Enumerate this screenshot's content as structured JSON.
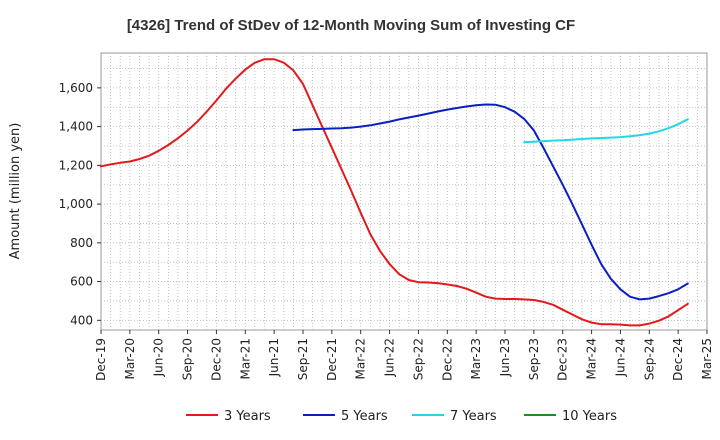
{
  "chart_data": {
    "type": "line",
    "title": "[4326]  Trend of StDev of 12-Month Moving Sum of Investing CF",
    "ylabel": "Amount (million yen)",
    "xlabel": "",
    "ylim": [
      350,
      1780
    ],
    "yticks": [
      400,
      600,
      800,
      1000,
      1200,
      1400,
      1600
    ],
    "ytick_labels": [
      "400",
      "600",
      "800",
      "1,000",
      "1,200",
      "1,400",
      "1,600"
    ],
    "x_range": [
      "2019-12",
      "2025-03"
    ],
    "xticks": [
      "2019-12",
      "2020-03",
      "2020-06",
      "2020-09",
      "2020-12",
      "2021-03",
      "2021-06",
      "2021-09",
      "2021-12",
      "2022-03",
      "2022-06",
      "2022-09",
      "2022-12",
      "2023-03",
      "2023-06",
      "2023-09",
      "2023-12",
      "2024-03",
      "2024-06",
      "2024-09",
      "2024-12",
      "2025-03"
    ],
    "xtick_labels": [
      "Dec-19",
      "Mar-20",
      "Jun-20",
      "Sep-20",
      "Dec-20",
      "Mar-21",
      "Jun-21",
      "Sep-21",
      "Dec-21",
      "Mar-22",
      "Jun-22",
      "Sep-22",
      "Dec-22",
      "Mar-23",
      "Jun-23",
      "Sep-23",
      "Dec-23",
      "Mar-24",
      "Jun-24",
      "Sep-24",
      "Dec-24",
      "Mar-25"
    ],
    "grid": true,
    "legend_position": "bottom",
    "series": [
      {
        "name": "3 Years",
        "color": "#e31a1c",
        "points": [
          [
            "2019-12",
            1195
          ],
          [
            "2020-01",
            1205
          ],
          [
            "2020-02",
            1213
          ],
          [
            "2020-03",
            1220
          ],
          [
            "2020-04",
            1233
          ],
          [
            "2020-05",
            1250
          ],
          [
            "2020-06",
            1275
          ],
          [
            "2020-07",
            1305
          ],
          [
            "2020-08",
            1340
          ],
          [
            "2020-09",
            1380
          ],
          [
            "2020-10",
            1425
          ],
          [
            "2020-11",
            1478
          ],
          [
            "2020-12",
            1535
          ],
          [
            "2021-01",
            1595
          ],
          [
            "2021-02",
            1648
          ],
          [
            "2021-03",
            1695
          ],
          [
            "2021-04",
            1730
          ],
          [
            "2021-05",
            1748
          ],
          [
            "2021-06",
            1748
          ],
          [
            "2021-07",
            1730
          ],
          [
            "2021-08",
            1690
          ],
          [
            "2021-09",
            1620
          ],
          [
            "2021-10",
            1510
          ],
          [
            "2021-11",
            1400
          ],
          [
            "2021-12",
            1290
          ],
          [
            "2022-01",
            1180
          ],
          [
            "2022-02",
            1070
          ],
          [
            "2022-03",
            955
          ],
          [
            "2022-04",
            845
          ],
          [
            "2022-05",
            758
          ],
          [
            "2022-06",
            690
          ],
          [
            "2022-07",
            638
          ],
          [
            "2022-08",
            608
          ],
          [
            "2022-09",
            597
          ],
          [
            "2022-10",
            595
          ],
          [
            "2022-11",
            592
          ],
          [
            "2022-12",
            585
          ],
          [
            "2023-01",
            577
          ],
          [
            "2023-02",
            563
          ],
          [
            "2023-03",
            543
          ],
          [
            "2023-04",
            522
          ],
          [
            "2023-05",
            512
          ],
          [
            "2023-06",
            510
          ],
          [
            "2023-07",
            510
          ],
          [
            "2023-08",
            508
          ],
          [
            "2023-09",
            505
          ],
          [
            "2023-10",
            495
          ],
          [
            "2023-11",
            480
          ],
          [
            "2023-12",
            455
          ],
          [
            "2024-01",
            430
          ],
          [
            "2024-02",
            405
          ],
          [
            "2024-03",
            388
          ],
          [
            "2024-04",
            380
          ],
          [
            "2024-05",
            380
          ],
          [
            "2024-06",
            378
          ],
          [
            "2024-07",
            374
          ],
          [
            "2024-08",
            374
          ],
          [
            "2024-09",
            383
          ],
          [
            "2024-10",
            398
          ],
          [
            "2024-11",
            420
          ],
          [
            "2024-12",
            452
          ],
          [
            "2025-01",
            485
          ]
        ]
      },
      {
        "name": "5 Years",
        "color": "#0a1fc4",
        "points": [
          [
            "2021-08",
            1382
          ],
          [
            "2021-09",
            1385
          ],
          [
            "2021-10",
            1387
          ],
          [
            "2021-11",
            1388
          ],
          [
            "2021-12",
            1390
          ],
          [
            "2022-01",
            1392
          ],
          [
            "2022-02",
            1395
          ],
          [
            "2022-03",
            1400
          ],
          [
            "2022-04",
            1407
          ],
          [
            "2022-05",
            1416
          ],
          [
            "2022-06",
            1426
          ],
          [
            "2022-07",
            1437
          ],
          [
            "2022-08",
            1447
          ],
          [
            "2022-09",
            1457
          ],
          [
            "2022-10",
            1467
          ],
          [
            "2022-11",
            1478
          ],
          [
            "2022-12",
            1488
          ],
          [
            "2023-01",
            1496
          ],
          [
            "2023-02",
            1504
          ],
          [
            "2023-03",
            1510
          ],
          [
            "2023-04",
            1514
          ],
          [
            "2023-05",
            1513
          ],
          [
            "2023-06",
            1500
          ],
          [
            "2023-07",
            1477
          ],
          [
            "2023-08",
            1440
          ],
          [
            "2023-09",
            1380
          ],
          [
            "2023-10",
            1290
          ],
          [
            "2023-11",
            1195
          ],
          [
            "2023-12",
            1100
          ],
          [
            "2024-01",
            1000
          ],
          [
            "2024-02",
            895
          ],
          [
            "2024-03",
            790
          ],
          [
            "2024-04",
            690
          ],
          [
            "2024-05",
            615
          ],
          [
            "2024-06",
            560
          ],
          [
            "2024-07",
            522
          ],
          [
            "2024-08",
            508
          ],
          [
            "2024-09",
            512
          ],
          [
            "2024-10",
            525
          ],
          [
            "2024-11",
            540
          ],
          [
            "2024-12",
            560
          ],
          [
            "2025-01",
            590
          ]
        ]
      },
      {
        "name": "7 Years",
        "color": "#22d8e8",
        "points": [
          [
            "2023-08",
            1320
          ],
          [
            "2023-09",
            1322
          ],
          [
            "2023-10",
            1325
          ],
          [
            "2023-11",
            1328
          ],
          [
            "2023-12",
            1330
          ],
          [
            "2024-01",
            1333
          ],
          [
            "2024-02",
            1336
          ],
          [
            "2024-03",
            1339
          ],
          [
            "2024-04",
            1341
          ],
          [
            "2024-05",
            1343
          ],
          [
            "2024-06",
            1346
          ],
          [
            "2024-07",
            1350
          ],
          [
            "2024-08",
            1356
          ],
          [
            "2024-09",
            1364
          ],
          [
            "2024-10",
            1376
          ],
          [
            "2024-11",
            1392
          ],
          [
            "2024-12",
            1412
          ],
          [
            "2025-01",
            1438
          ]
        ]
      },
      {
        "name": "10 Years",
        "color": "#1e8c1e",
        "points": []
      }
    ]
  }
}
